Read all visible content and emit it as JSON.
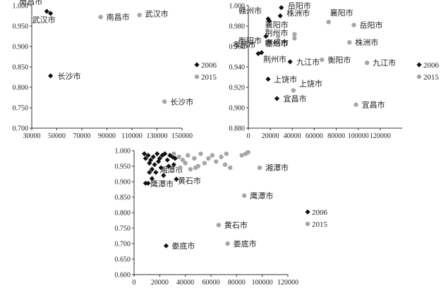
{
  "colors": {
    "series_2006": "#111111",
    "series_2015": "#a6a6a6",
    "axis": "#333333"
  },
  "chart_data": [
    {
      "type": "scatter",
      "legend_position": "right",
      "grid": false,
      "xlim": [
        30000,
        150000
      ],
      "ylim": [
        0.7,
        1.0
      ],
      "x_ticks": [
        "30000",
        "50000",
        "70000",
        "90000",
        "110000",
        "130000",
        "150000"
      ],
      "y_ticks": [
        "0.700",
        "0.750",
        "0.800",
        "0.850",
        "0.900",
        "0.950",
        "1.000"
      ],
      "series": [
        {
          "name": "2006",
          "marker": "diamond",
          "points": [
            {
              "x": 42000,
              "y": 0.986,
              "label": "南昌市"
            },
            {
              "x": 45000,
              "y": 0.981,
              "label": "武汉市"
            },
            {
              "x": 45000,
              "y": 0.828,
              "label": "长沙市"
            }
          ]
        },
        {
          "name": "2015",
          "marker": "circle",
          "points": [
            {
              "x": 85000,
              "y": 0.972,
              "label": "南昌市"
            },
            {
              "x": 116000,
              "y": 0.977,
              "label": "武汉市"
            },
            {
              "x": 136000,
              "y": 0.765,
              "label": "长沙市"
            }
          ]
        }
      ]
    },
    {
      "type": "scatter",
      "legend_position": "right",
      "grid": false,
      "xlim": [
        0,
        140000
      ],
      "ylim": [
        0.88,
        1.0
      ],
      "x_ticks": [
        "0",
        "20000",
        "40000",
        "60000",
        "80000",
        "100000",
        "120000"
      ],
      "y_ticks": [
        "0.880",
        "0.900",
        "0.920",
        "0.940",
        "0.960",
        "0.980",
        "1.000"
      ],
      "series": [
        {
          "name": "2006",
          "marker": "diamond",
          "points": [
            {
              "x": 30000,
              "y": 0.998,
              "label": "岳阳市"
            },
            {
              "x": 29000,
              "y": 0.99,
              "label": "株洲市"
            },
            {
              "x": 18000,
              "y": 0.987,
              "label": "赣州市"
            },
            {
              "x": 19000,
              "y": 0.985,
              "label": "襄阳市"
            },
            {
              "x": 16000,
              "y": 0.97,
              "label": "衡阳市"
            },
            {
              "x": 12000,
              "y": 0.954,
              "label": "孝感市"
            },
            {
              "x": 9000,
              "y": 0.953,
              "label": "荆州市"
            },
            {
              "x": 38000,
              "y": 0.945,
              "label": "九江市"
            },
            {
              "x": 18000,
              "y": 0.928,
              "label": "上饶市"
            },
            {
              "x": 26000,
              "y": 0.909,
              "label": "宜昌市"
            }
          ]
        },
        {
          "name": "2015",
          "marker": "circle",
          "points": [
            {
              "x": 42000,
              "y": 0.972,
              "label": "荆州市"
            },
            {
              "x": 73000,
              "y": 0.984,
              "label": "襄阳市"
            },
            {
              "x": 96000,
              "y": 0.981,
              "label": "岳阳市"
            },
            {
              "x": 42000,
              "y": 0.968,
              "label": "赣州市"
            },
            {
              "x": 27000,
              "y": 0.97,
              "label": "孝感市"
            },
            {
              "x": 92000,
              "y": 0.964,
              "label": "株洲市"
            },
            {
              "x": 67000,
              "y": 0.947,
              "label": "衡阳市"
            },
            {
              "x": 108000,
              "y": 0.944,
              "label": "九江市"
            },
            {
              "x": 41000,
              "y": 0.917,
              "label": "上饶市"
            },
            {
              "x": 98000,
              "y": 0.903,
              "label": "宜昌市"
            }
          ]
        }
      ]
    },
    {
      "type": "scatter",
      "legend_position": "right",
      "grid": false,
      "xlim": [
        0,
        120000
      ],
      "ylim": [
        0.6,
        1.0
      ],
      "x_ticks": [
        "0",
        "20000",
        "40000",
        "60000",
        "80000",
        "100000",
        "120000"
      ],
      "y_ticks": [
        "0.600",
        "0.650",
        "0.700",
        "0.750",
        "0.800",
        "0.850",
        "0.900",
        "0.950",
        "1.000"
      ],
      "series": [
        {
          "name": "2006",
          "marker": "diamond",
          "points": [
            {
              "x": 31000,
              "y": 0.955,
              "label": "湘潭市"
            },
            {
              "x": 11000,
              "y": 0.895,
              "label": "鹰潭市"
            },
            {
              "x": 33000,
              "y": 0.908,
              "label": "黄石市"
            },
            {
              "x": 25000,
              "y": 0.693,
              "label": "娄底市"
            },
            {
              "x": 8000,
              "y": 0.99
            },
            {
              "x": 9000,
              "y": 0.975
            },
            {
              "x": 11000,
              "y": 0.985
            },
            {
              "x": 12000,
              "y": 0.96
            },
            {
              "x": 13000,
              "y": 0.97
            },
            {
              "x": 14000,
              "y": 0.94
            },
            {
              "x": 15000,
              "y": 0.98
            },
            {
              "x": 16000,
              "y": 0.955
            },
            {
              "x": 17000,
              "y": 0.93
            },
            {
              "x": 18000,
              "y": 0.99
            },
            {
              "x": 19000,
              "y": 0.965
            },
            {
              "x": 20000,
              "y": 0.975
            },
            {
              "x": 21000,
              "y": 0.945
            },
            {
              "x": 22000,
              "y": 0.985
            },
            {
              "x": 23000,
              "y": 0.92
            },
            {
              "x": 24000,
              "y": 0.99
            },
            {
              "x": 26000,
              "y": 0.97
            },
            {
              "x": 28000,
              "y": 0.985
            },
            {
              "x": 30000,
              "y": 0.98
            },
            {
              "x": 32000,
              "y": 0.975
            },
            {
              "x": 9000,
              "y": 0.895
            },
            {
              "x": 14000,
              "y": 0.91
            },
            {
              "x": 27000,
              "y": 0.95
            },
            {
              "x": 12000,
              "y": 0.93
            }
          ]
        },
        {
          "name": "2015",
          "marker": "circle",
          "points": [
            {
              "x": 98000,
              "y": 0.945,
              "label": "湘潭市"
            },
            {
              "x": 86000,
              "y": 0.855,
              "label": "鹰潭市"
            },
            {
              "x": 66000,
              "y": 0.76,
              "label": "黄石市"
            },
            {
              "x": 73000,
              "y": 0.7,
              "label": "娄底市"
            },
            {
              "x": 31000,
              "y": 0.99
            },
            {
              "x": 35000,
              "y": 0.98
            },
            {
              "x": 38000,
              "y": 0.97
            },
            {
              "x": 40000,
              "y": 0.96
            },
            {
              "x": 42000,
              "y": 0.985
            },
            {
              "x": 44000,
              "y": 0.94
            },
            {
              "x": 47000,
              "y": 0.975
            },
            {
              "x": 50000,
              "y": 0.95
            },
            {
              "x": 52000,
              "y": 0.99
            },
            {
              "x": 55000,
              "y": 0.96
            },
            {
              "x": 58000,
              "y": 0.975
            },
            {
              "x": 61000,
              "y": 0.985
            },
            {
              "x": 64000,
              "y": 0.965
            },
            {
              "x": 68000,
              "y": 0.98
            },
            {
              "x": 71000,
              "y": 0.955
            },
            {
              "x": 75000,
              "y": 0.945
            },
            {
              "x": 84000,
              "y": 0.985
            },
            {
              "x": 87000,
              "y": 0.99
            },
            {
              "x": 89000,
              "y": 0.995
            },
            {
              "x": 36000,
              "y": 0.945
            },
            {
              "x": 48000,
              "y": 0.945
            },
            {
              "x": 72000,
              "y": 0.99
            }
          ]
        }
      ]
    }
  ]
}
